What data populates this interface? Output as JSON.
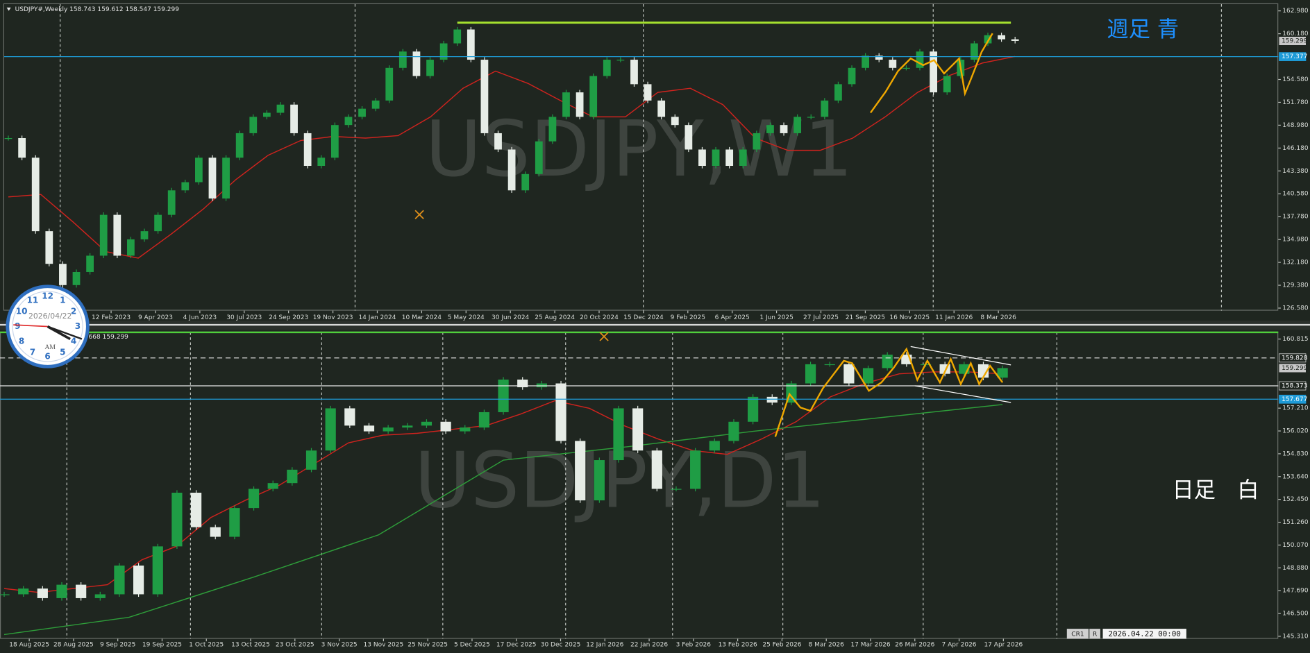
{
  "chart_data": [
    {
      "type": "candlestick",
      "title": "USDJPY#,Weekly",
      "ohlc": [
        158.743,
        159.612,
        158.547,
        159.299
      ],
      "watermark": "USDJPY,W1",
      "annotation": "週足 青",
      "x_labels": [
        "12 Feb 2023",
        "9 Apr 2023",
        "4 Jun 2023",
        "30 Jul 2023",
        "24 Sep 2023",
        "19 Nov 2023",
        "14 Jan 2024",
        "10 Mar 2024",
        "5 May 2024",
        "30 Jun 2024",
        "25 Aug 2024",
        "20 Oct 2024",
        "15 Dec 2024",
        "9 Feb 2025",
        "6 Apr 2025",
        "1 Jun 2025",
        "27 Jul 2025",
        "21 Sep 2025",
        "16 Nov 2025",
        "11 Jan 2026",
        "8 Mar 2026"
      ],
      "values": [
        147.4,
        145,
        136,
        132,
        129.4,
        131,
        133,
        138,
        133,
        135,
        136,
        138,
        141,
        142,
        145,
        140,
        145,
        148,
        150,
        150.5,
        151.5,
        148,
        144,
        145,
        149,
        150,
        151,
        152,
        156,
        158,
        155,
        157,
        159,
        160.7,
        157,
        148,
        146,
        141,
        143,
        147,
        150,
        153,
        150,
        155,
        157,
        157,
        154,
        152,
        150,
        149,
        146,
        144,
        146,
        144,
        146,
        148,
        149,
        148,
        150,
        150,
        152,
        154,
        156,
        157.5,
        157,
        156,
        156,
        158,
        153,
        155,
        157,
        159,
        160,
        159.5,
        159.3
      ],
      "up_color": "#1f9d45",
      "down_color": "#e6ece6",
      "series": [
        {
          "color": "#d0231e",
          "values": [
            140.2,
            140.5,
            137.1,
            133.5,
            132.7,
            135.6,
            138.7,
            142.3,
            145.3,
            147.1,
            147.6,
            147.4,
            147.7,
            150.0,
            153.5,
            155.6,
            154.1,
            152.0,
            150.0,
            150.0,
            153.0,
            153.5,
            151.5,
            147.4,
            145.9,
            145.9,
            147.4,
            150.0,
            153.0,
            155.1,
            156.6,
            157.4
          ]
        }
      ],
      "ylim": [
        126.27,
        163.8
      ],
      "yticks": [
        {
          "value": 162.98,
          "label": "162.980"
        },
        {
          "value": 160.18,
          "label": "160.180"
        },
        {
          "value": 154.58,
          "label": "154.580"
        },
        {
          "value": 151.78,
          "label": "151.780"
        },
        {
          "value": 148.98,
          "label": "148.980"
        },
        {
          "value": 146.18,
          "label": "146.180"
        },
        {
          "value": 143.38,
          "label": "143.380"
        },
        {
          "value": 140.58,
          "label": "140.580"
        },
        {
          "value": 137.78,
          "label": "137.780"
        },
        {
          "value": 134.98,
          "label": "134.980"
        },
        {
          "value": 132.18,
          "label": "132.180"
        },
        {
          "value": 129.38,
          "label": "129.380"
        },
        {
          "value": 126.58,
          "label": "126.580"
        }
      ],
      "levels": [
        {
          "value": 161.54,
          "color": "#a6e22e",
          "style": "from-peak"
        },
        {
          "value": 157.377,
          "color": "#1e9bd7",
          "style": "solid",
          "tag_fill": "#1e9bd7"
        }
      ],
      "current_price": 159.299
    },
    {
      "type": "candlestick",
      "title": "668 159.299",
      "watermark": "USDJPY,D1",
      "annotation": "日足　白",
      "x_labels": [
        "18 Aug 2025",
        "28 Aug 2025",
        "9 Sep 2025",
        "19 Sep 2025",
        "1 Oct 2025",
        "13 Oct 2025",
        "23 Oct 2025",
        "3 Nov 2025",
        "13 Nov 2025",
        "25 Nov 2025",
        "5 Dec 2025",
        "17 Dec 2025",
        "30 Dec 2025",
        "12 Jan 2026",
        "22 Jan 2026",
        "3 Feb 2026",
        "13 Feb 2026",
        "25 Feb 2026",
        "8 Mar 2026",
        "17 Mar 2026",
        "26 Mar 2026",
        "7 Apr 2026",
        "17 Apr 2026"
      ],
      "values": [
        147.5,
        147.8,
        147.3,
        148,
        147.3,
        147.5,
        149,
        147.5,
        150,
        152.8,
        151,
        150.5,
        152,
        153,
        153.3,
        154,
        155,
        157.2,
        156.3,
        156,
        156.2,
        156.3,
        156.5,
        156,
        156.2,
        157,
        158.7,
        158.3,
        158.5,
        155.5,
        152.4,
        154.5,
        157.2,
        155,
        153,
        153,
        155,
        155.5,
        156.5,
        157.8,
        157.5,
        158.5,
        159.5,
        159.5,
        158.5,
        159.3,
        160.0,
        159.5,
        159.5,
        159,
        159.5,
        158.8,
        159.3
      ],
      "up_color": "#1f9d45",
      "down_color": "#e6ece6",
      "series": [
        {
          "color": "#d0231e",
          "values": [
            147.8,
            147.6,
            147.8,
            148.0,
            149.3,
            150.0,
            151.5,
            152.4,
            153.2,
            154.3,
            155.4,
            155.8,
            155.9,
            156.1,
            156.3,
            156.9,
            157.6,
            157.2,
            156.3,
            155.6,
            155.0,
            154.8,
            155.6,
            156.5,
            157.8,
            158.5,
            159.0,
            159.1,
            159.1,
            159.0
          ]
        },
        {
          "color": "#2e9e3a",
          "values": [
            145.4,
            146.3,
            148.4,
            150.6,
            154.5,
            155.2,
            156.0,
            156.7,
            157.4
          ]
        }
      ],
      "ylim": [
        145.179,
        161.164
      ],
      "yticks": [
        160.815,
        {
          "value": 157.21,
          "label": "157.210"
        },
        {
          "value": 156.02,
          "label": "156.020"
        },
        {
          "value": 154.83,
          "label": "154.830"
        },
        {
          "value": 153.64,
          "label": "153.640"
        },
        {
          "value": 152.45,
          "label": "152.450"
        },
        {
          "value": 151.26,
          "label": "151.260"
        },
        {
          "value": 150.07,
          "label": "150.070"
        },
        {
          "value": 148.88,
          "label": "148.880"
        },
        {
          "value": 147.69,
          "label": "147.690"
        },
        {
          "value": 146.5,
          "label": "146.500"
        },
        {
          "value": 145.31,
          "label": "145.310"
        }
      ],
      "levels": [
        {
          "value": 159.828,
          "color": "#e8e8e8",
          "style": "dashed",
          "tag_fill": "#1f2620"
        },
        {
          "value": 158.373,
          "color": "#e8e8e8",
          "style": "solid",
          "tag_fill": "#1f2620"
        },
        {
          "value": 157.677,
          "color": "#1e9bd7",
          "style": "solid",
          "tag_fill": "#1e9bd7"
        }
      ],
      "current_price": 159.299
    }
  ],
  "ui": {
    "clock": {
      "date": "2026/04/22",
      "period": "AM",
      "numerals": [
        12,
        1,
        2,
        3,
        4,
        5,
        6,
        7,
        8,
        9,
        10,
        11
      ]
    },
    "status": {
      "profile": "CR1",
      "mode": "R",
      "time": "2026.04.22 00:00"
    }
  }
}
